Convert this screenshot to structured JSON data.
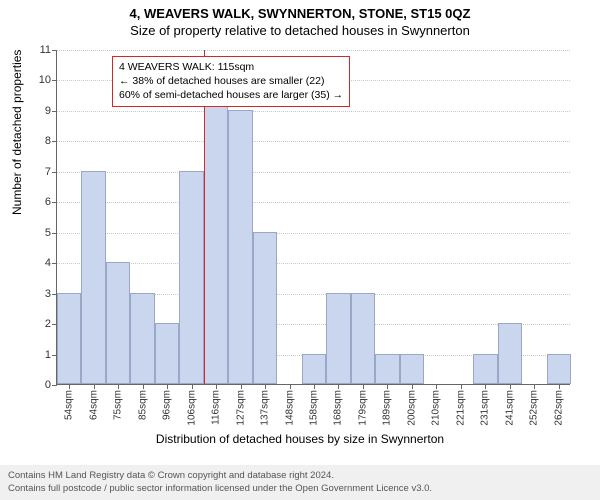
{
  "title_main": "4, WEAVERS WALK, SWYNNERTON, STONE, ST15 0QZ",
  "title_sub": "Size of property relative to detached houses in Swynnerton",
  "chart": {
    "type": "histogram",
    "ylim": [
      0,
      11
    ],
    "ytick_step": 1,
    "ylabel": "Number of detached properties",
    "xlabel": "Distribution of detached houses by size in Swynnerton",
    "categories": [
      "54sqm",
      "64sqm",
      "75sqm",
      "85sqm",
      "96sqm",
      "106sqm",
      "116sqm",
      "127sqm",
      "137sqm",
      "148sqm",
      "158sqm",
      "168sqm",
      "179sqm",
      "189sqm",
      "200sqm",
      "210sqm",
      "221sqm",
      "231sqm",
      "241sqm",
      "252sqm",
      "262sqm"
    ],
    "values": [
      3,
      7,
      4,
      3,
      2,
      7,
      10,
      9,
      5,
      0,
      1,
      3,
      3,
      1,
      1,
      0,
      0,
      1,
      2,
      0,
      1
    ],
    "bar_fill": "#cad6ed",
    "bar_stroke": "#9aa7c7",
    "grid_color": "#c8c8c8",
    "axis_color": "#666666",
    "background_color": "#ffffff",
    "reference_line": {
      "index": 6,
      "color": "#d02828"
    },
    "annotation": {
      "border_color": "#d02828",
      "line1": "4 WEAVERS WALK: 115sqm",
      "line2": "← 38% of detached houses are smaller (22)",
      "line3": "60% of semi-detached houses are larger (35) →"
    }
  },
  "footer": {
    "line1": "Contains HM Land Registry data © Crown copyright and database right 2024.",
    "line2": "Contains full postcode / public sector information licensed under the Open Government Licence v3.0."
  }
}
